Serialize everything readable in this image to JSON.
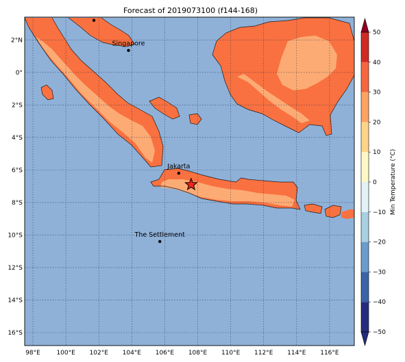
{
  "title": "Forecast of 2019073100 (f144-168)",
  "colorbar": {
    "label": "Min Temperature (°C)",
    "tick_labels": [
      "50",
      "40",
      "30",
      "20",
      "10",
      "0",
      "−10",
      "−20",
      "−30",
      "−40",
      "−50"
    ],
    "levels": [
      -50,
      -40,
      -30,
      -20,
      -10,
      0,
      10,
      20,
      30,
      40,
      50
    ],
    "colors": [
      "#262c7d",
      "#3a63a8",
      "#6a9ccc",
      "#a8cfe2",
      "#e2f2f7",
      "#fdf8c6",
      "#fdd588",
      "#fca464",
      "#f6663f",
      "#d02a24",
      "#8f0022"
    ],
    "extend": "both"
  },
  "map": {
    "lon_range": [
      97.5,
      117.5
    ],
    "lat_range": [
      -16.8,
      3.4
    ],
    "lon_tick_labels": [
      "98°E",
      "100°E",
      "102°E",
      "104°E",
      "106°E",
      "108°E",
      "110°E",
      "112°E",
      "114°E",
      "116°E"
    ],
    "lon_ticks": [
      98,
      100,
      102,
      104,
      106,
      108,
      110,
      112,
      114,
      116
    ],
    "lat_tick_labels": [
      "2°N",
      "0°",
      "2°S",
      "4°S",
      "6°S",
      "8°S",
      "10°S",
      "12°S",
      "14°S",
      "16°S"
    ],
    "lat_ticks": [
      2,
      0,
      -2,
      -4,
      -6,
      -8,
      -10,
      -12,
      -14,
      -16
    ],
    "ocean_color": "#8fb1d8",
    "land_colors": {
      "warm": "#f97140",
      "mild": "#fdab74"
    },
    "cities": [
      {
        "name": "Singapore",
        "lon": 103.8,
        "lat": 1.35
      },
      {
        "name": "Jakarta",
        "lon": 106.85,
        "lat": -6.2
      },
      {
        "name": "The Settlement",
        "lon": 105.7,
        "lat": -10.4
      }
    ],
    "extra_dots": [
      {
        "lon": 101.7,
        "lat": 3.2
      }
    ],
    "marker": {
      "symbol": "star",
      "lon": 107.6,
      "lat": -6.9,
      "color": "#f0241c"
    }
  }
}
